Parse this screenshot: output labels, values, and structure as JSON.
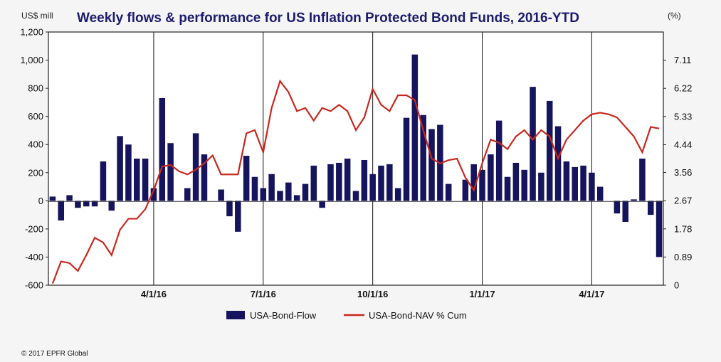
{
  "chart_data": {
    "type": "bar+line",
    "title": "Weekly flows & performance for US Inflation Protected Bond Funds, 2016-YTD",
    "left_unit": "US$ mill",
    "right_unit": "(%)",
    "left_ticks": [
      "-600",
      "-400",
      "-200",
      "0",
      "200",
      "400",
      "600",
      "800",
      "1,000",
      "1,200"
    ],
    "left_ylim": [
      -600,
      1200
    ],
    "right_ticks": [
      "0",
      "0.89",
      "1.78",
      "2.67",
      "3.56",
      "4.44",
      "5.33",
      "6.22",
      "7.11"
    ],
    "right_ylim": [
      0,
      8.0
    ],
    "x_ticks": [
      {
        "label": "4/1/16",
        "index": 12.5
      },
      {
        "label": "7/1/16",
        "index": 25.5
      },
      {
        "label": "10/1/16",
        "index": 38.5
      },
      {
        "label": "1/1/17",
        "index": 51.5
      },
      {
        "label": "4/1/17",
        "index": 64.5
      }
    ],
    "series": [
      {
        "name": "USA-Bond-Flow",
        "type": "bar",
        "color": "#15145c",
        "values": [
          30,
          -140,
          40,
          -50,
          -40,
          -40,
          280,
          -70,
          460,
          400,
          300,
          300,
          90,
          730,
          410,
          0,
          90,
          480,
          330,
          0,
          80,
          -110,
          -220,
          320,
          170,
          90,
          190,
          70,
          130,
          40,
          120,
          250,
          -50,
          260,
          270,
          300,
          70,
          290,
          190,
          250,
          260,
          90,
          590,
          1040,
          610,
          510,
          540,
          120,
          0,
          150,
          260,
          220,
          330,
          570,
          170,
          270,
          220,
          810,
          200,
          710,
          530,
          280,
          240,
          250,
          200,
          100,
          0,
          -90,
          -150,
          10,
          300,
          -100,
          -400
        ]
      },
      {
        "name": "USA-Bond-NAV % Cum",
        "type": "line",
        "color": "#c8281e",
        "values": [
          0.05,
          0.75,
          0.7,
          0.45,
          0.95,
          1.5,
          1.35,
          0.95,
          1.75,
          2.1,
          2.1,
          2.4,
          3.0,
          3.75,
          3.8,
          3.6,
          3.5,
          3.65,
          3.85,
          4.1,
          3.5,
          3.5,
          3.5,
          4.8,
          4.9,
          4.2,
          5.6,
          6.45,
          6.1,
          5.5,
          5.6,
          5.2,
          5.6,
          5.5,
          5.7,
          5.5,
          4.9,
          5.3,
          6.2,
          5.7,
          5.5,
          6.0,
          6.0,
          5.85,
          4.9,
          4.0,
          3.85,
          3.95,
          4.0,
          3.4,
          3.0,
          3.85,
          4.6,
          4.5,
          4.3,
          4.7,
          4.9,
          4.6,
          4.9,
          4.7,
          4.0,
          4.6,
          4.9,
          5.2,
          5.4,
          5.45,
          5.4,
          5.3,
          5.0,
          4.7,
          4.2,
          5.0,
          4.95
        ]
      }
    ],
    "legend": [
      "USA-Bond-Flow",
      "USA-Bond-NAV % Cum"
    ],
    "legend_position": "bottom-center",
    "grid": "vertical"
  },
  "footer": {
    "copyright": "© 2017 EPFR Global"
  }
}
